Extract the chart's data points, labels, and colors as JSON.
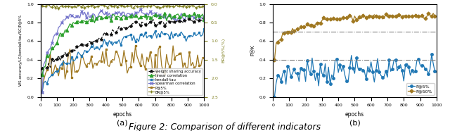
{
  "title": "Figure 2: Comparison of different indicators",
  "title_fontsize": 9,
  "subplot_a": {
    "xlabel": "epochs",
    "ylabel_left": "WS accuracy/LC/kendall-tau/SC/P@5%",
    "ylabel_right": "BR@5%(%)",
    "xlim": [
      0,
      1000
    ],
    "ylim_left": [
      0,
      1.0
    ],
    "label_a": "(a)",
    "legend_labels": [
      "weight sharing accuracy",
      "linear correlation",
      "kendall-tau",
      "spearman correlation",
      "P@5%",
      "BR@5%"
    ],
    "colors": [
      "#111111",
      "#2ca02c",
      "#1f77b4",
      "#7777cc",
      "#a07820",
      "#808020"
    ],
    "markers": [
      "*",
      "^",
      "s",
      "x",
      "s",
      "+"
    ]
  },
  "subplot_b": {
    "xlabel": "epochs",
    "ylabel": "P@K",
    "xlim": [
      0,
      1000
    ],
    "ylim": [
      0,
      1.0
    ],
    "hline1": 0.7,
    "hline2": 0.4,
    "label_b": "(b)",
    "legend_labels": [
      "P@5%",
      "P@50%"
    ],
    "colors": [
      "#1f77b4",
      "#a07820"
    ]
  }
}
